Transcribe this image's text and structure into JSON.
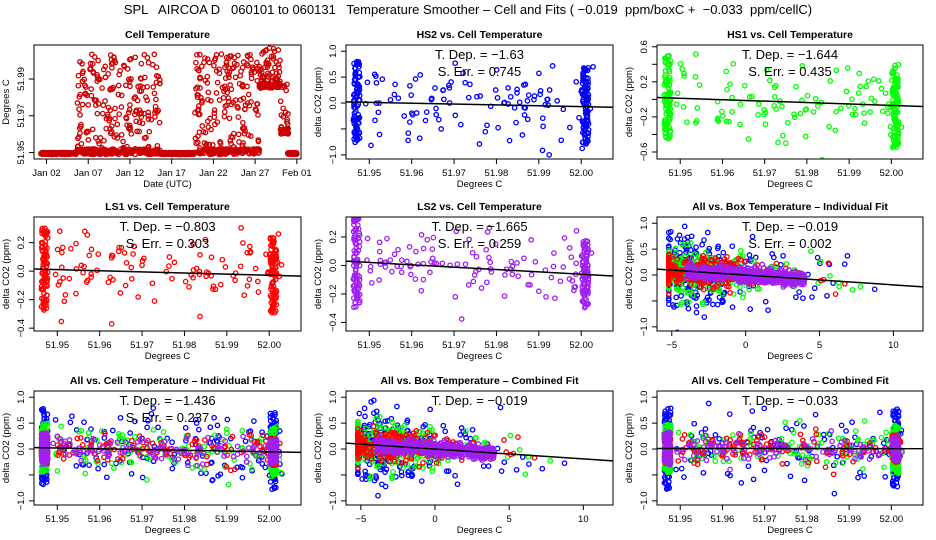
{
  "main_title": "SPL   AIRCOA D   060101 to 060131   Temperature Smoother – Cell and Fits ( −0.019  ppm/boxC +  −0.033  ppm/cellC)",
  "colors": {
    "HS2": "#0000ff",
    "HS1": "#00ff00",
    "LS1": "#ff0000",
    "LS2": "#a020f0",
    "cell": "#cc0000",
    "fit": "#000000"
  },
  "chart_data": [
    {
      "id": "cell-temperature",
      "type": "scatter",
      "title": "Cell Temperature",
      "xlabel": "Date (UTC)",
      "ylabel": "Degrees C",
      "xlim": [
        -0.5,
        31.5
      ],
      "ylim": [
        51.9465,
        52.0085
      ],
      "xticks": [
        {
          "v": 1,
          "label": "Jan 02"
        },
        {
          "v": 6,
          "label": "Jan 07"
        },
        {
          "v": 11,
          "label": "Jan 12"
        },
        {
          "v": 16,
          "label": "Jan 17"
        },
        {
          "v": 21,
          "label": "Jan 22"
        },
        {
          "v": 26,
          "label": "Jan 27"
        },
        {
          "v": 31,
          "label": "Feb 01"
        }
      ],
      "yticks": [
        {
          "v": 51.95,
          "label": "51.95"
        },
        {
          "v": 51.97,
          "label": "51.97"
        },
        {
          "v": 51.99,
          "label": "51.99"
        }
      ],
      "series": [
        {
          "name": "cell",
          "color_key": "cell",
          "segments": [
            {
              "x0": 0.3,
              "x1": 4.6,
              "ymin": 51.949,
              "ymax": 51.95
            },
            {
              "x0": 4.6,
              "x1": 8.5,
              "ymin": 51.949,
              "ymax": 52.004
            },
            {
              "x0": 8.5,
              "x1": 12.5,
              "ymin": 51.949,
              "ymax": 52.004
            },
            {
              "x0": 12.5,
              "x1": 14.6,
              "ymin": 51.949,
              "ymax": 52.004
            },
            {
              "x0": 14.6,
              "x1": 18.8,
              "ymin": 51.949,
              "ymax": 51.95
            },
            {
              "x0": 18.8,
              "x1": 22.5,
              "ymin": 51.949,
              "ymax": 52.004
            },
            {
              "x0": 22.5,
              "x1": 26.5,
              "ymin": 51.949,
              "ymax": 52.004
            },
            {
              "x0": 26.5,
              "x1": 29.0,
              "ymin": 51.985,
              "ymax": 52.007
            },
            {
              "x0": 29.0,
              "x1": 30.0,
              "ymin": 51.96,
              "ymax": 51.99
            },
            {
              "x0": 29.9,
              "x1": 31.0,
              "ymin": 51.949,
              "ymax": 51.95
            }
          ]
        }
      ]
    },
    {
      "id": "hs2-vs-cell",
      "type": "scatter",
      "title": "HS2 vs. Cell Temperature",
      "xlabel": "Degrees C",
      "ylabel": "delta CO2 (ppm)",
      "xlim": [
        51.9445,
        52.0075
      ],
      "ylim": [
        -1.08,
        1.12
      ],
      "xticks": [
        {
          "v": 51.95,
          "label": "51.95"
        },
        {
          "v": 51.96,
          "label": "51.96"
        },
        {
          "v": 51.97,
          "label": "51.97"
        },
        {
          "v": 51.98,
          "label": "51.98"
        },
        {
          "v": 51.99,
          "label": "51.99"
        },
        {
          "v": 52.0,
          "label": "52.00"
        }
      ],
      "yticks": [
        {
          "v": -1.0,
          "label": "−1.0"
        },
        {
          "v": -0.5,
          "label": ""
        },
        {
          "v": 0.0,
          "label": "0.0"
        },
        {
          "v": 0.5,
          "label": "0.5"
        },
        {
          "v": 1.0,
          "label": "1.0"
        }
      ],
      "annotations": [
        "T. Dep. =  −1.63",
        "S. Err. =  0.745"
      ],
      "fit": {
        "slope": -1.63,
        "x0": 51.97,
        "y0": -0.02
      },
      "series": [
        {
          "name": "HS2",
          "color_key": "HS2",
          "spread": 0.36,
          "clusters": [
            [
              51.947,
              0.98
            ],
            [
              52.001,
              0.95
            ]
          ]
        }
      ]
    },
    {
      "id": "hs1-vs-cell",
      "type": "scatter",
      "title": "HS1 vs. Cell Temperature",
      "xlabel": "Degrees C",
      "ylabel": "delta CO2 (ppm)",
      "xlim": [
        51.9445,
        52.0075
      ],
      "ylim": [
        -0.68,
        0.62
      ],
      "xticks": [
        {
          "v": 51.95,
          "label": "51.95"
        },
        {
          "v": 51.96,
          "label": "51.96"
        },
        {
          "v": 51.97,
          "label": "51.97"
        },
        {
          "v": 51.98,
          "label": "51.98"
        },
        {
          "v": 51.99,
          "label": "51.99"
        },
        {
          "v": 52.0,
          "label": "52.00"
        }
      ],
      "yticks": [
        {
          "v": -0.6,
          "label": "−0.6"
        },
        {
          "v": -0.4,
          "label": ""
        },
        {
          "v": -0.2,
          "label": "−0.2"
        },
        {
          "v": 0.0,
          "label": ""
        },
        {
          "v": 0.2,
          "label": "0.2"
        },
        {
          "v": 0.4,
          "label": ""
        },
        {
          "v": 0.6,
          "label": "0.6"
        }
      ],
      "annotations": [
        "T. Dep. =  −1.644",
        "S. Err. =  0.435"
      ],
      "fit": {
        "slope": -1.644,
        "x0": 51.97,
        "y0": -0.02
      },
      "series": [
        {
          "name": "HS1",
          "color_key": "HS1",
          "spread": 0.22,
          "clusters": [
            [
              51.947,
              0.6
            ],
            [
              52.001,
              0.6
            ]
          ]
        }
      ]
    },
    {
      "id": "ls1-vs-cell",
      "type": "scatter",
      "title": "LS1 vs. Cell Temperature",
      "xlabel": "Degrees C",
      "ylabel": "delta CO2 (ppm)",
      "xlim": [
        51.9445,
        52.0075
      ],
      "ylim": [
        -0.42,
        0.38
      ],
      "xticks": [
        {
          "v": 51.95,
          "label": "51.95"
        },
        {
          "v": 51.96,
          "label": "51.96"
        },
        {
          "v": 51.97,
          "label": "51.97"
        },
        {
          "v": 51.98,
          "label": "51.98"
        },
        {
          "v": 51.99,
          "label": "51.99"
        },
        {
          "v": 52.0,
          "label": "52.00"
        }
      ],
      "yticks": [
        {
          "v": -0.4,
          "label": "−0.4"
        },
        {
          "v": -0.2,
          "label": "−0.2"
        },
        {
          "v": 0.0,
          "label": "0.0"
        },
        {
          "v": 0.2,
          "label": "0.2"
        }
      ],
      "annotations": [
        "T. Dep. =  −0.803",
        "S. Err. =  0.303"
      ],
      "fit": {
        "slope": -0.803,
        "x0": 51.97,
        "y0": -0.005
      },
      "series": [
        {
          "name": "LS1",
          "color_key": "LS1",
          "spread": 0.15,
          "clusters": [
            [
              51.947,
              0.36
            ],
            [
              52.001,
              0.33
            ]
          ]
        }
      ]
    },
    {
      "id": "ls2-vs-cell",
      "type": "scatter",
      "title": "LS2 vs. Cell Temperature",
      "xlabel": "Degrees C",
      "ylabel": "delta CO2 (ppm)",
      "xlim": [
        51.9445,
        52.0075
      ],
      "ylim": [
        -0.46,
        0.34
      ],
      "xticks": [
        {
          "v": 51.95,
          "label": "51.95"
        },
        {
          "v": 51.96,
          "label": "51.96"
        },
        {
          "v": 51.97,
          "label": "51.97"
        },
        {
          "v": 51.98,
          "label": "51.98"
        },
        {
          "v": 51.99,
          "label": "51.99"
        },
        {
          "v": 52.0,
          "label": "52.00"
        }
      ],
      "yticks": [
        {
          "v": -0.4,
          "label": "−0.4"
        },
        {
          "v": -0.2,
          "label": "−0.2"
        },
        {
          "v": 0.0,
          "label": "0.0"
        },
        {
          "v": 0.2,
          "label": "0.2"
        }
      ],
      "annotations": [
        "T. Dep. =  −1.665",
        "S. Err. =  0.259"
      ],
      "fit": {
        "slope": -1.665,
        "x0": 51.97,
        "y0": -0.012
      },
      "series": [
        {
          "name": "LS2",
          "color_key": "LS2",
          "spread": 0.12,
          "clusters": [
            [
              51.947,
              0.4
            ],
            [
              52.001,
              0.3
            ]
          ]
        }
      ]
    },
    {
      "id": "all-vs-box-individual",
      "type": "scatter",
      "title": "All vs. Box Temperature – Individual Fit",
      "xlabel": "Degrees C",
      "ylabel": "delta CO2 (ppm)",
      "xlim": [
        -6,
        12
      ],
      "ylim": [
        -1.08,
        1.12
      ],
      "xticks": [
        {
          "v": -5,
          "label": "−5"
        },
        {
          "v": 0,
          "label": "0"
        },
        {
          "v": 5,
          "label": "5"
        },
        {
          "v": 10,
          "label": "10"
        }
      ],
      "yticks": [
        {
          "v": -1.0,
          "label": "−1.0"
        },
        {
          "v": -0.5,
          "label": ""
        },
        {
          "v": 0.0,
          "label": "0.0"
        },
        {
          "v": 0.5,
          "label": "0.5"
        },
        {
          "v": 1.0,
          "label": "1.0"
        }
      ],
      "annotations": [
        "T. Dep. =  −0.019",
        "S. Err. =  0.002"
      ],
      "fit": {
        "slope": -0.019,
        "x0": 0,
        "y0": 0.0
      },
      "box": true,
      "series": [
        {
          "name": "HS2",
          "color_key": "HS2",
          "spread": 0.36
        },
        {
          "name": "HS1",
          "color_key": "HS1",
          "spread": 0.22
        },
        {
          "name": "LS1",
          "color_key": "LS1",
          "spread": 0.15
        },
        {
          "name": "LS2",
          "color_key": "LS2",
          "spread": 0.1
        }
      ]
    },
    {
      "id": "all-vs-cell-individual",
      "type": "scatter",
      "title": "All vs. Cell Temperature – Individual Fit",
      "xlabel": "Degrees C",
      "ylabel": "delta CO2 (ppm)",
      "xlim": [
        51.9445,
        52.0075
      ],
      "ylim": [
        -1.08,
        1.12
      ],
      "xticks": [
        {
          "v": 51.95,
          "label": "51.95"
        },
        {
          "v": 51.96,
          "label": "51.96"
        },
        {
          "v": 51.97,
          "label": "51.97"
        },
        {
          "v": 51.98,
          "label": "51.98"
        },
        {
          "v": 51.99,
          "label": "51.99"
        },
        {
          "v": 52.0,
          "label": "52.00"
        }
      ],
      "yticks": [
        {
          "v": -1.0,
          "label": "−1.0"
        },
        {
          "v": -0.5,
          "label": ""
        },
        {
          "v": 0.0,
          "label": "0.0"
        },
        {
          "v": 0.5,
          "label": "0.5"
        },
        {
          "v": 1.0,
          "label": "1.0"
        }
      ],
      "annotations": [
        "T. Dep. =  −1.436",
        "S. Err. =  0.237"
      ],
      "fit": {
        "slope": -1.436,
        "x0": 51.97,
        "y0": -0.01
      },
      "series": [
        {
          "name": "HS2",
          "color_key": "HS2",
          "spread": 0.36,
          "clusters": [
            [
              51.947,
              0.98
            ],
            [
              52.001,
              0.95
            ]
          ]
        },
        {
          "name": "HS1",
          "color_key": "HS1",
          "spread": 0.22,
          "clusters": [
            [
              51.947,
              0.6
            ],
            [
              52.001,
              0.6
            ]
          ]
        },
        {
          "name": "LS1",
          "color_key": "LS1",
          "spread": 0.15,
          "clusters": [
            [
              51.947,
              0.36
            ],
            [
              52.001,
              0.33
            ]
          ]
        },
        {
          "name": "LS2",
          "color_key": "LS2",
          "spread": 0.12,
          "clusters": [
            [
              51.947,
              0.4
            ],
            [
              52.001,
              0.3
            ]
          ]
        }
      ]
    },
    {
      "id": "all-vs-box-combined",
      "type": "scatter",
      "title": "All vs. Box Temperature – Combined Fit",
      "xlabel": "Degrees C",
      "ylabel": "delta CO2 (ppm)",
      "xlim": [
        -6,
        12
      ],
      "ylim": [
        -1.08,
        1.12
      ],
      "xticks": [
        {
          "v": -5,
          "label": "−5"
        },
        {
          "v": 0,
          "label": "0"
        },
        {
          "v": 5,
          "label": "5"
        },
        {
          "v": 10,
          "label": "10"
        }
      ],
      "yticks": [
        {
          "v": -1.0,
          "label": "−1.0"
        },
        {
          "v": -0.5,
          "label": ""
        },
        {
          "v": 0.0,
          "label": "0.0"
        },
        {
          "v": 0.5,
          "label": "0.5"
        },
        {
          "v": 1.0,
          "label": "1.0"
        }
      ],
      "annotations": [
        "T. Dep. =  −0.019"
      ],
      "fit": {
        "slope": -0.019,
        "x0": 0,
        "y0": 0.0
      },
      "box": true,
      "series": [
        {
          "name": "HS2",
          "color_key": "HS2",
          "spread": 0.36
        },
        {
          "name": "HS1",
          "color_key": "HS1",
          "spread": 0.22
        },
        {
          "name": "LS1",
          "color_key": "LS1",
          "spread": 0.15
        },
        {
          "name": "LS2",
          "color_key": "LS2",
          "spread": 0.1
        }
      ]
    },
    {
      "id": "all-vs-cell-combined",
      "type": "scatter",
      "title": "All vs. Cell Temperature – Combined Fit",
      "xlabel": "Degrees C",
      "ylabel": "delta CO2 (ppm)",
      "xlim": [
        51.9445,
        52.0075
      ],
      "ylim": [
        -1.08,
        1.12
      ],
      "xticks": [
        {
          "v": 51.95,
          "label": "51.95"
        },
        {
          "v": 51.96,
          "label": "51.96"
        },
        {
          "v": 51.97,
          "label": "51.97"
        },
        {
          "v": 51.98,
          "label": "51.98"
        },
        {
          "v": 51.99,
          "label": "51.99"
        },
        {
          "v": 52.0,
          "label": "52.00"
        }
      ],
      "yticks": [
        {
          "v": -1.0,
          "label": "−1.0"
        },
        {
          "v": -0.5,
          "label": ""
        },
        {
          "v": 0.0,
          "label": "0.0"
        },
        {
          "v": 0.5,
          "label": "0.5"
        },
        {
          "v": 1.0,
          "label": "1.0"
        }
      ],
      "annotations": [
        "T. Dep. =  −0.033"
      ],
      "fit": {
        "slope": -0.033,
        "x0": 51.97,
        "y0": 0.01
      },
      "series": [
        {
          "name": "HS2",
          "color_key": "HS2",
          "spread": 0.36,
          "clusters": [
            [
              51.947,
              0.98
            ],
            [
              52.001,
              0.95
            ]
          ]
        },
        {
          "name": "HS1",
          "color_key": "HS1",
          "spread": 0.22,
          "clusters": [
            [
              51.947,
              0.6
            ],
            [
              52.001,
              0.6
            ]
          ]
        },
        {
          "name": "LS1",
          "color_key": "LS1",
          "spread": 0.15,
          "clusters": [
            [
              51.947,
              0.36
            ],
            [
              52.001,
              0.33
            ]
          ]
        },
        {
          "name": "LS2",
          "color_key": "LS2",
          "spread": 0.12,
          "clusters": [
            [
              51.947,
              0.4
            ],
            [
              52.001,
              0.3
            ]
          ]
        }
      ]
    }
  ]
}
